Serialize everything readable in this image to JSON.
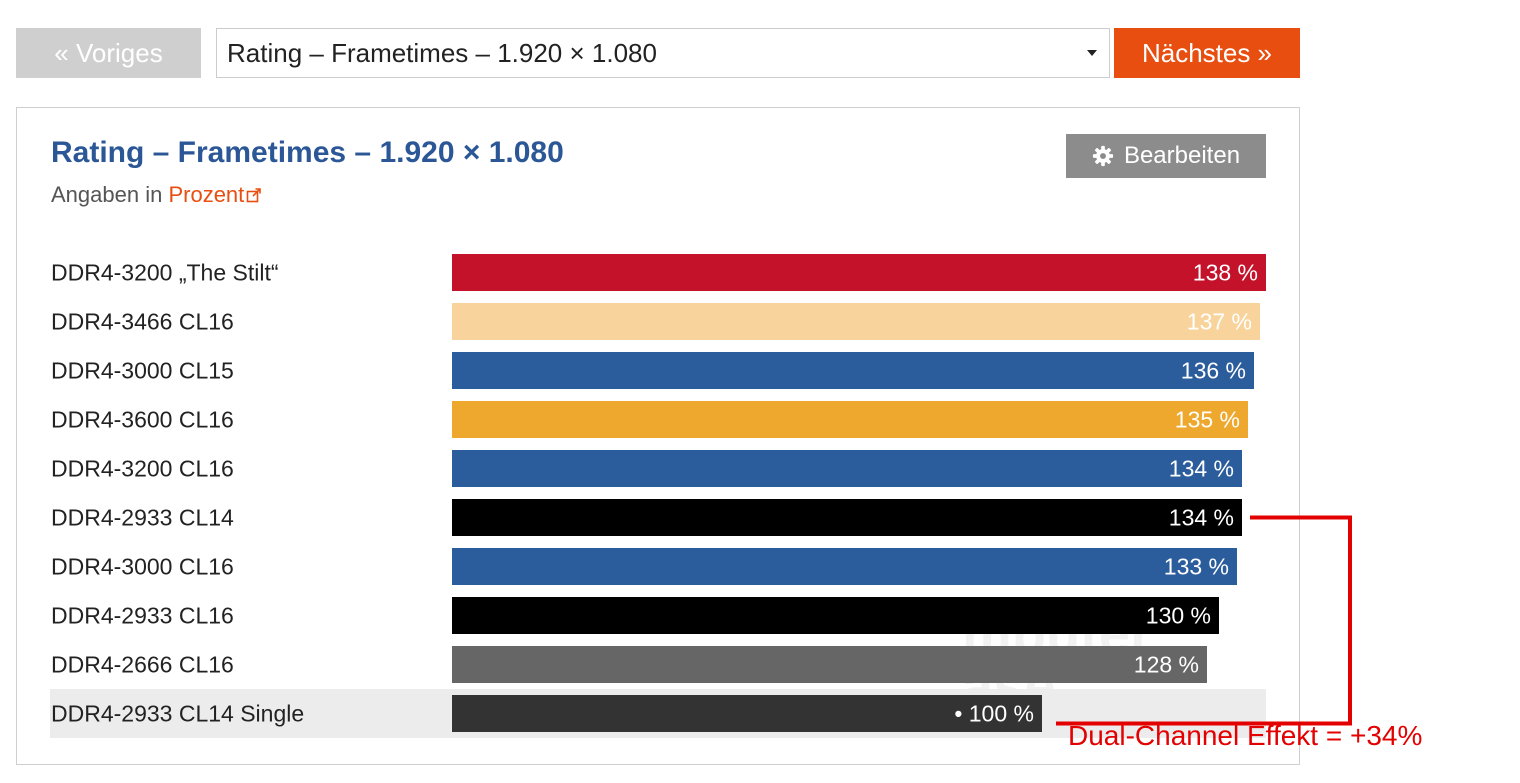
{
  "nav": {
    "prev_label": "« Voriges",
    "select_value": "Rating – Frametimes – 1.920 × 1.080",
    "next_label": "Nächstes »"
  },
  "panel": {
    "title": "Rating – Frametimes – 1.920 × 1.080",
    "subtitle_prefix": "Angaben in",
    "subtitle_link": "Prozent",
    "edit_label": "Bearbeiten",
    "watermark_line1": "mputer",
    "watermark_line2": "ase"
  },
  "annotation": {
    "text": "Dual-Channel Effekt = +34%",
    "color": "#e30000"
  },
  "colors": {
    "accent": "#e84e0f",
    "title_blue": "#2b5797"
  },
  "chart_data": {
    "type": "bar",
    "orientation": "horizontal",
    "title": "Rating – Frametimes – 1.920 × 1.080",
    "xlim": [
      0,
      138
    ],
    "categories": [
      "DDR4-3200 „The Stilt“",
      "DDR4-3466 CL16",
      "DDR4-3000 CL15",
      "DDR4-3600 CL16",
      "DDR4-3200 CL16",
      "DDR4-2933 CL14",
      "DDR4-3000 CL16",
      "DDR4-2933 CL16",
      "DDR4-2666 CL16",
      "DDR4-2933 CL14 Single"
    ],
    "values": [
      138,
      137,
      136,
      135,
      134,
      134,
      133,
      130,
      128,
      100
    ],
    "value_labels": [
      "138 %",
      "137 %",
      "136 %",
      "135 %",
      "134 %",
      "134 %",
      "133 %",
      "130 %",
      "128 %",
      "• 100 %"
    ],
    "bar_colors": [
      "#c5122b",
      "#f8d49c",
      "#2b5c9c",
      "#efa82e",
      "#2b5c9c",
      "#000000",
      "#2b5c9c",
      "#000000",
      "#666666",
      "#333333"
    ],
    "highlighted_index": 9,
    "highlight_color": "#ececec"
  }
}
